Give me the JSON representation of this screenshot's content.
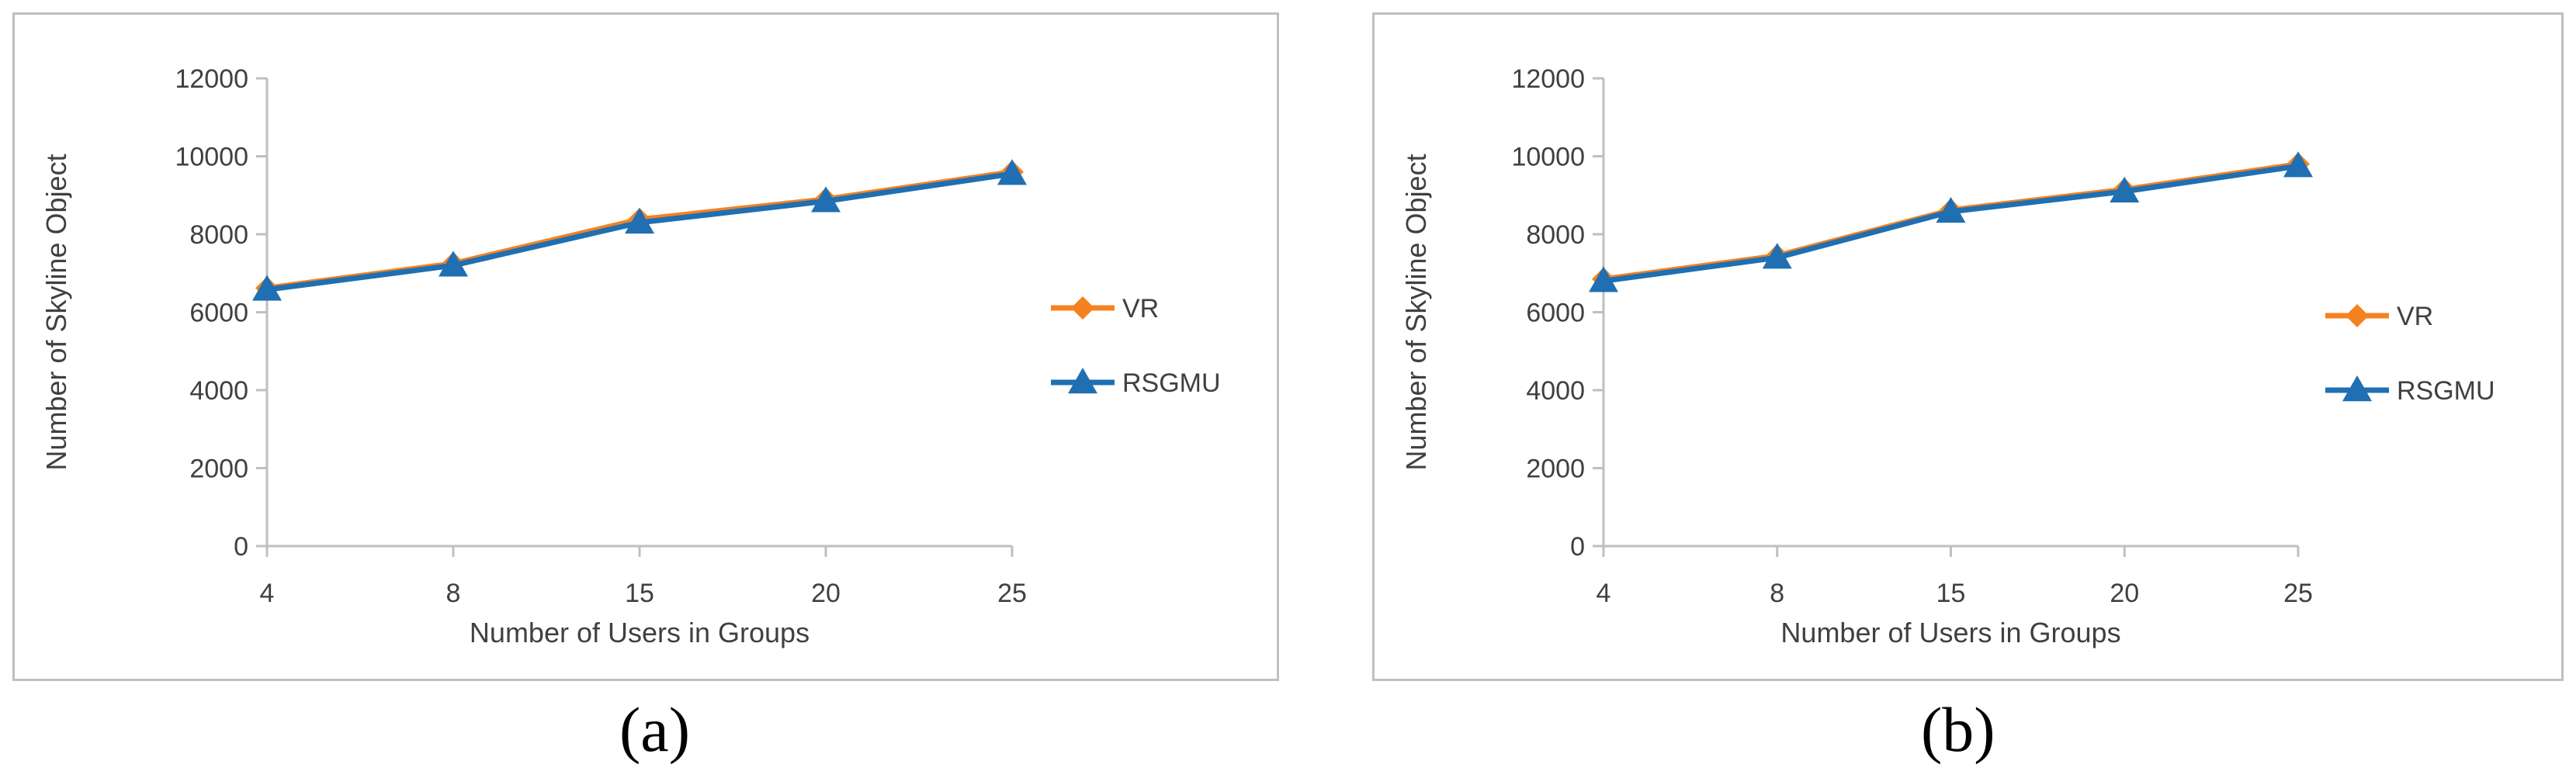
{
  "colors": {
    "VR": "#f58220",
    "RSGMU": "#1f6fb2",
    "axis": "#bfbfbf",
    "text": "#404040"
  },
  "chart_data": [
    {
      "type": "line",
      "caption": "(a)",
      "categories": [
        "4",
        "8",
        "15",
        "20",
        "25"
      ],
      "xlabel": "Number of Users in Groups",
      "ylabel": "Number of Skyline Object",
      "ylim": [
        0,
        12000
      ],
      "yticks": [
        0,
        2000,
        4000,
        6000,
        8000,
        10000,
        12000
      ],
      "grid": false,
      "legend": "right",
      "series": [
        {
          "name": "VR",
          "values": [
            6620,
            7250,
            8380,
            8900,
            9600
          ]
        },
        {
          "name": "RSGMU",
          "values": [
            6580,
            7200,
            8300,
            8850,
            9550
          ]
        }
      ]
    },
    {
      "type": "line",
      "caption": "(b)",
      "categories": [
        "4",
        "8",
        "15",
        "20",
        "25"
      ],
      "xlabel": "Number of Users in Groups",
      "ylabel": "Number of Skyline Object",
      "ylim": [
        0,
        12000
      ],
      "yticks": [
        0,
        2000,
        4000,
        6000,
        8000,
        10000,
        12000
      ],
      "grid": false,
      "legend": "right",
      "series": [
        {
          "name": "VR",
          "values": [
            6850,
            7450,
            8620,
            9150,
            9800
          ]
        },
        {
          "name": "RSGMU",
          "values": [
            6800,
            7400,
            8580,
            9100,
            9750
          ]
        }
      ]
    }
  ]
}
